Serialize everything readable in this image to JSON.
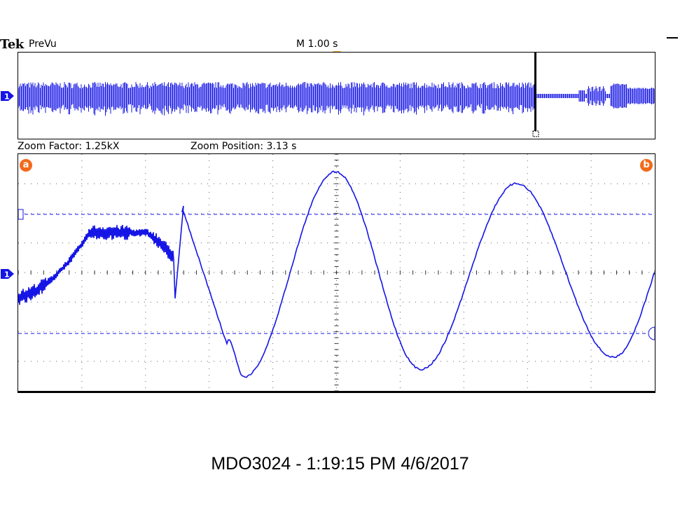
{
  "header": {
    "brand": "Tek",
    "mode": "PreVu",
    "timebase": "M 1.00 s"
  },
  "zoom": {
    "factor_label": "Zoom Factor: 1.25kX",
    "position_label": "Zoom Position: 3.13 s"
  },
  "channel": {
    "number": "1",
    "color": "#1515e6"
  },
  "cursors": {
    "a_label": "a",
    "b_label": "b",
    "color": "#f26a1b"
  },
  "colors": {
    "trace": "#1515e6",
    "trigger_marker": "#f6a623",
    "grid": "#606060",
    "cursor_line": "#1515e6"
  },
  "footer": {
    "text": "MDO3024 - 1:19:15 PM   4/6/2017"
  }
}
